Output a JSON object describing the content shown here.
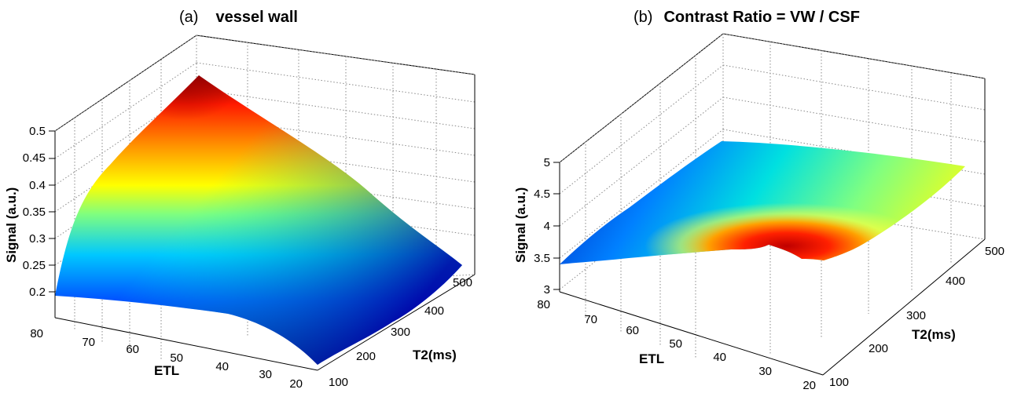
{
  "figure": {
    "panels": [
      {
        "label": "(a)",
        "title": "vessel wall"
      },
      {
        "label": "(b)",
        "title": "Contrast Ratio = VW / CSF"
      }
    ]
  },
  "chart_data": [
    {
      "type": "surface",
      "title": "vessel wall",
      "panel_label": "(a)",
      "xlabel": "T2(ms)",
      "ylabel": "ETL",
      "zlabel": "Signal (a.u.)",
      "x_ticks": [
        "100",
        "200",
        "300",
        "400",
        "500"
      ],
      "y_ticks": [
        "80",
        "70",
        "60",
        "50",
        "40",
        "30",
        "20"
      ],
      "z_ticks": [
        "0.2",
        "0.25",
        "0.3",
        "0.35",
        "0.4",
        "0.45",
        "0.5"
      ],
      "xlim": [
        100,
        500
      ],
      "ylim": [
        20,
        80
      ],
      "zlim": [
        0.18,
        0.5
      ],
      "colormap": "jet",
      "grid": true,
      "x": [
        100,
        500
      ],
      "y": [
        20,
        80
      ],
      "z": [
        [
          0.16,
          0.19
        ],
        [
          0.25,
          0.54
        ]
      ]
    },
    {
      "type": "surface",
      "title": "Contrast Ratio = VW / CSF",
      "panel_label": "(b)",
      "xlabel": "T2(ms)",
      "ylabel": "ETL",
      "zlabel": "Signal (a.u.)",
      "x_ticks": [
        "100",
        "200",
        "300",
        "400",
        "500"
      ],
      "y_ticks": [
        "80",
        "70",
        "60",
        "50",
        "40",
        "30",
        "20"
      ],
      "z_ticks": [
        "3",
        "3.5",
        "4",
        "4.5",
        "5"
      ],
      "xlim": [
        100,
        500
      ],
      "ylim": [
        20,
        80
      ],
      "zlim": [
        3,
        5
      ],
      "colormap": "jet",
      "grid": true,
      "x": [
        100,
        500
      ],
      "y": [
        20,
        80
      ],
      "z": [
        [
          3.9,
          3.5
        ],
        [
          3.4,
          4.8
        ]
      ]
    }
  ]
}
